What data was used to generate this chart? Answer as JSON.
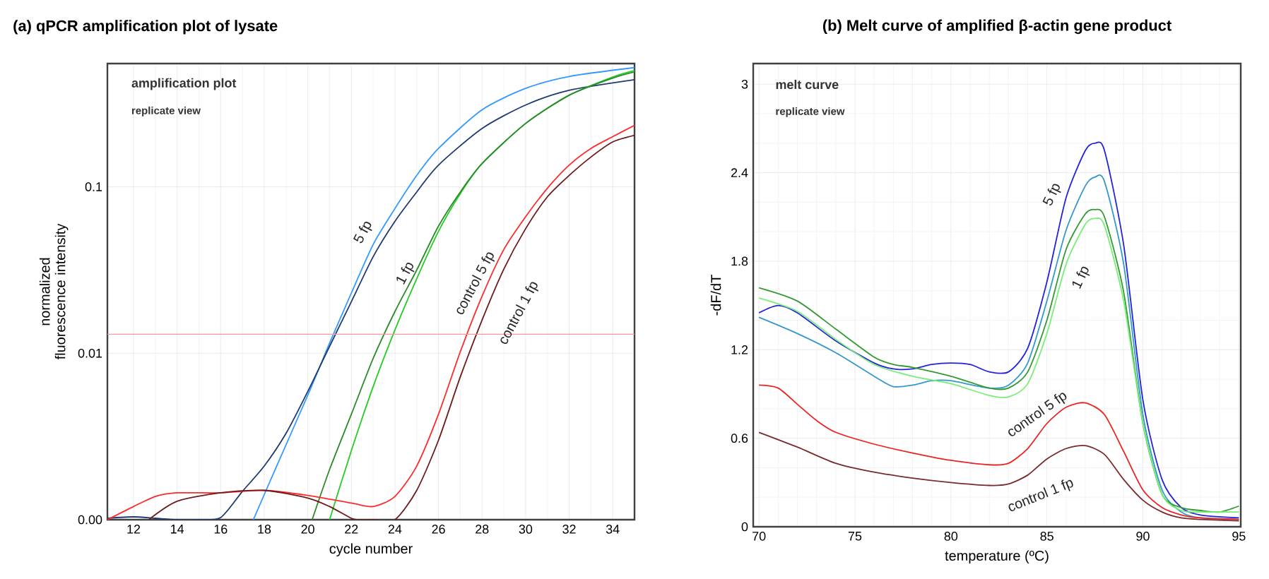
{
  "chart_data": [
    {
      "type": "line",
      "title": "(a) qPCR amplification plot of lysate",
      "xlabel": "cycle number",
      "ylabel": "normalized fluorescence intensity",
      "log": "y",
      "grid": true,
      "xlim": [
        10.8,
        35
      ],
      "ylim": [
        0.001,
        0.55
      ],
      "xticks": [
        12,
        14,
        16,
        18,
        20,
        22,
        24,
        26,
        28,
        30,
        32,
        34
      ],
      "yticks": [
        {
          "value": 0.001,
          "label": "0.00"
        },
        0.01,
        0.1
      ],
      "ref_lines": [
        {
          "axis": "y",
          "value": 0.013,
          "color": "#ff9999"
        }
      ],
      "annotations": [
        "amplification plot",
        "replicate view",
        "5 fp",
        "1 fp",
        "control 5 fp",
        "control 1 fp"
      ],
      "series": [
        {
          "color": "#3399ff",
          "x": [
            17.5,
            18.5,
            20,
            21,
            22,
            23,
            24,
            25,
            26,
            28,
            30,
            32,
            35
          ],
          "values": [
            0.001,
            0.002,
            0.0056,
            0.0115,
            0.023,
            0.045,
            0.074,
            0.117,
            0.17,
            0.29,
            0.39,
            0.46,
            0.52
          ]
        },
        {
          "color": "#1f3a70",
          "x": [
            10.8,
            12,
            13,
            14,
            15,
            16,
            17,
            18,
            19,
            20,
            21,
            22,
            23,
            24,
            25,
            26,
            28,
            30,
            32,
            35
          ],
          "values": [
            0.00102,
            0.00104,
            0.00102,
            0.001,
            0.001,
            0.00103,
            0.00148,
            0.0021,
            0.0033,
            0.0059,
            0.011,
            0.0204,
            0.038,
            0.062,
            0.093,
            0.135,
            0.224,
            0.31,
            0.38,
            0.44
          ]
        },
        {
          "color": "#22cc22",
          "x": [
            21,
            22,
            23,
            24,
            25,
            26,
            27,
            28,
            30,
            32,
            34,
            35
          ],
          "values": [
            0.001,
            0.0026,
            0.0063,
            0.0138,
            0.028,
            0.054,
            0.091,
            0.138,
            0.24,
            0.355,
            0.457,
            0.5
          ]
        },
        {
          "color": "#2a8a2a",
          "x": [
            20.2,
            21,
            22,
            23,
            24,
            25,
            26,
            27,
            28,
            30,
            32,
            34,
            35
          ],
          "values": [
            0.001,
            0.002,
            0.0043,
            0.0093,
            0.0178,
            0.0316,
            0.058,
            0.093,
            0.138,
            0.24,
            0.355,
            0.45,
            0.49
          ]
        },
        {
          "color": "#ff2a2a",
          "x": [
            10.8,
            12,
            13,
            14,
            16,
            18,
            20,
            22,
            23,
            24,
            25,
            26,
            27,
            28,
            29,
            30,
            31,
            32,
            33,
            34,
            35
          ],
          "values": [
            0.001,
            0.0012,
            0.00138,
            0.00145,
            0.00145,
            0.0015,
            0.0014,
            0.00126,
            0.0012,
            0.00138,
            0.0021,
            0.0043,
            0.0102,
            0.022,
            0.042,
            0.066,
            0.098,
            0.135,
            0.17,
            0.2,
            0.234
          ]
        },
        {
          "color": "#6e1a1a",
          "x": [
            12.7,
            14,
            16,
            18,
            20,
            21,
            22,
            22.3,
            23,
            24,
            25,
            26,
            27,
            28,
            29,
            30,
            31,
            32,
            33,
            34,
            35
          ],
          "values": [
            0.001,
            0.00129,
            0.00145,
            0.0015,
            0.00135,
            0.0012,
            0.00102,
            0.001,
            0.001,
            0.001,
            0.0015,
            0.003,
            0.0072,
            0.0158,
            0.032,
            0.056,
            0.087,
            0.117,
            0.151,
            0.186,
            0.204
          ]
        }
      ]
    },
    {
      "type": "line",
      "title": "(b)  Melt curve of amplified β-actin gene product",
      "xlabel": "temperature (ºC)",
      "ylabel": "-dF/dT",
      "grid": true,
      "xlim": [
        69.7,
        95.1
      ],
      "ylim": [
        0,
        3.14
      ],
      "xticks": [
        70,
        75,
        80,
        85,
        90,
        95
      ],
      "yticks": [
        0,
        0.6,
        1.2,
        1.8,
        2.4,
        3
      ],
      "annotations": [
        "melt curve",
        "replicate view",
        "5 fp",
        "1 fp",
        "control 5 fp",
        "control 1 fp"
      ],
      "series": [
        {
          "color": "#2222dd",
          "x": [
            70,
            71,
            72,
            74,
            76,
            77,
            78,
            79,
            80,
            81,
            82,
            83,
            84,
            85,
            86,
            87,
            87.5,
            88,
            89,
            90,
            91,
            92,
            93,
            95
          ],
          "values": [
            1.45,
            1.5,
            1.45,
            1.26,
            1.11,
            1.07,
            1.07,
            1.1,
            1.11,
            1.1,
            1.05,
            1.05,
            1.21,
            1.66,
            2.23,
            2.55,
            2.6,
            2.55,
            1.91,
            0.86,
            0.32,
            0.13,
            0.08,
            0.06
          ]
        },
        {
          "color": "#3399cc",
          "x": [
            70,
            72,
            74,
            76,
            77,
            78,
            79,
            80,
            82,
            83,
            84,
            85,
            86,
            87,
            87.5,
            88,
            89,
            90,
            91,
            92,
            93,
            95
          ],
          "values": [
            1.42,
            1.31,
            1.18,
            1.02,
            0.95,
            0.96,
            0.99,
            0.99,
            0.94,
            0.96,
            1.11,
            1.53,
            2.01,
            2.31,
            2.37,
            2.34,
            1.78,
            0.76,
            0.25,
            0.1,
            0.06,
            0.05
          ]
        },
        {
          "color": "#339933",
          "x": [
            70,
            72,
            74,
            76,
            77,
            78,
            80,
            82,
            83,
            84,
            85,
            86,
            87,
            87.5,
            88,
            89,
            90,
            91,
            92,
            93,
            94,
            95
          ],
          "values": [
            1.62,
            1.53,
            1.34,
            1.15,
            1.1,
            1.08,
            1.02,
            0.94,
            0.94,
            1.05,
            1.4,
            1.88,
            2.12,
            2.15,
            2.1,
            1.59,
            0.7,
            0.22,
            0.13,
            0.11,
            0.1,
            0.14
          ]
        },
        {
          "color": "#77ee77",
          "x": [
            70,
            72,
            74,
            76,
            78,
            80,
            82,
            83,
            84,
            85,
            86,
            87,
            87.5,
            88,
            89,
            90,
            91,
            92,
            93,
            95
          ],
          "values": [
            1.55,
            1.46,
            1.27,
            1.1,
            1.02,
            0.97,
            0.89,
            0.88,
            0.97,
            1.31,
            1.78,
            2.05,
            2.09,
            2.04,
            1.53,
            0.7,
            0.22,
            0.11,
            0.1,
            0.1
          ]
        },
        {
          "color": "#ee2222",
          "x": [
            70,
            71,
            72,
            73,
            74,
            76,
            78,
            80,
            82,
            83,
            84,
            85,
            86,
            87,
            88,
            89,
            90,
            91,
            92,
            93,
            95
          ],
          "values": [
            0.96,
            0.94,
            0.83,
            0.72,
            0.64,
            0.56,
            0.5,
            0.45,
            0.42,
            0.43,
            0.53,
            0.7,
            0.81,
            0.84,
            0.76,
            0.51,
            0.25,
            0.13,
            0.08,
            0.06,
            0.05
          ]
        },
        {
          "color": "#7a2a2a",
          "x": [
            70,
            72,
            74,
            76,
            78,
            80,
            82,
            83,
            84,
            85,
            86,
            87,
            88,
            89,
            90,
            91,
            92,
            93,
            95
          ],
          "values": [
            0.64,
            0.54,
            0.43,
            0.37,
            0.33,
            0.3,
            0.28,
            0.29,
            0.35,
            0.46,
            0.53,
            0.55,
            0.49,
            0.32,
            0.18,
            0.1,
            0.06,
            0.05,
            0.04
          ]
        }
      ]
    }
  ]
}
